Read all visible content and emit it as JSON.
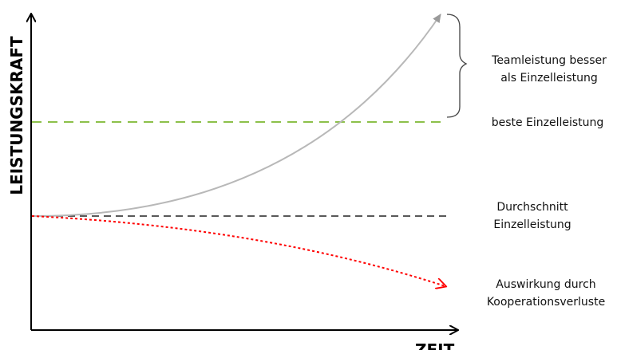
{
  "axes": {
    "y_label": "LEISTUNGSKRAFT",
    "x_label": "ZEIT"
  },
  "labels": {
    "team_line1": "Teamleistung besser",
    "team_line2": "als Einzelleistung",
    "best": "beste Einzelleistung",
    "avg_line1": "Durchschnitt",
    "avg_line2": "Einzelleistung",
    "loss_line1": "Auswirkung durch",
    "loss_line2": "Kooperationsverluste"
  },
  "colors": {
    "axis": "#000000",
    "team_curve": "#b8b8b8",
    "best_line": "#8cc04a",
    "avg_line": "#222222",
    "loss_curve": "#ff0000"
  }
}
